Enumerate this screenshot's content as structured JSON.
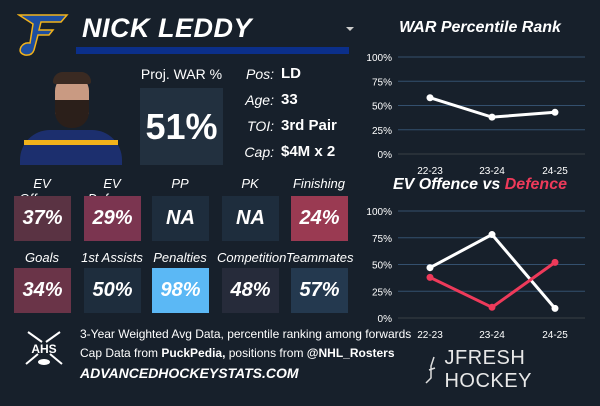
{
  "player": {
    "name": "NICK LEDDY",
    "team_color": "#0b2f8a"
  },
  "war": {
    "label": "Proj. WAR %",
    "value": "51%"
  },
  "info": [
    {
      "label": "Pos:",
      "value": "LD"
    },
    {
      "label": "Age:",
      "value": "33"
    },
    {
      "label": "TOI:",
      "value": "3rd Pair"
    },
    {
      "label": "Cap:",
      "value": "$4M x 2"
    }
  ],
  "tiles": [
    {
      "label": "EV Offence",
      "value": "37%",
      "color": "#5a3343"
    },
    {
      "label": "EV Defence",
      "value": "29%",
      "color": "#7b3550"
    },
    {
      "label": "PP",
      "value": "NA",
      "color": "#1e2d3d"
    },
    {
      "label": "PK",
      "value": "NA",
      "color": "#1e2d3d"
    },
    {
      "label": "Finishing",
      "value": "24%",
      "color": "#9a3a52"
    },
    {
      "label": "Goals",
      "value": "34%",
      "color": "#6a3448"
    },
    {
      "label": "1st Assists",
      "value": "50%",
      "color": "#1e2d3d"
    },
    {
      "label": "Penalties",
      "value": "98%",
      "color": "#5bb8f5"
    },
    {
      "label": "Competition",
      "value": "48%",
      "color": "#262b3a"
    },
    {
      "label": "Teammates",
      "value": "57%",
      "color": "#24394f"
    }
  ],
  "footer": {
    "line1": "3-Year Weighted Avg Data, percentile ranking among forwards",
    "line2_a": "Cap Data from ",
    "line2_b": "PuckPedia,",
    "line2_c": " positions from ",
    "line2_d": "@NHL_Rosters",
    "site": "ADVANCEDHOCKEYSTATS.COM",
    "ahs_logo": "AHS",
    "brand": "JFRESH HOCKEY"
  },
  "chart_data": [
    {
      "type": "line",
      "title": "WAR Percentile Rank",
      "categories": [
        "22-23",
        "23-24",
        "24-25"
      ],
      "ylim": [
        0,
        100
      ],
      "yticks": [
        "0%",
        "25%",
        "50%",
        "75%",
        "100%"
      ],
      "grid": true,
      "series": [
        {
          "values": [
            58,
            38,
            43
          ],
          "color": "#ffffff"
        }
      ]
    },
    {
      "type": "line",
      "title_a": "EV Offence vs ",
      "title_b": "Defence",
      "categories": [
        "22-23",
        "23-24",
        "24-25"
      ],
      "ylim": [
        0,
        100
      ],
      "yticks": [
        "0%",
        "25%",
        "50%",
        "75%",
        "100%"
      ],
      "grid": true,
      "series": [
        {
          "name": "EV Offence",
          "values": [
            47,
            78,
            9
          ],
          "color": "#ffffff"
        },
        {
          "name": "Defence",
          "values": [
            38,
            10,
            52
          ],
          "color": "#ee3a5a"
        }
      ]
    }
  ]
}
